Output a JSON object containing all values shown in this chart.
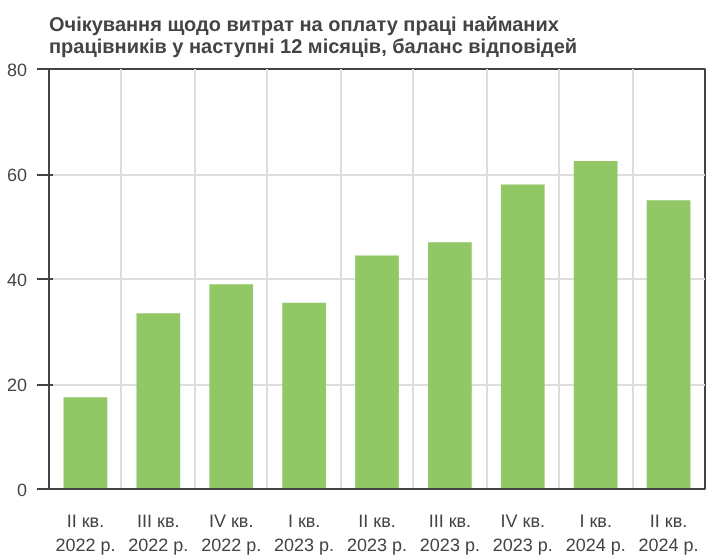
{
  "chart_data": {
    "type": "bar",
    "title": "Очікування щодо витрат на оплату праці найманих\nпрацівників у наступні 12 місяців, баланс відповідей",
    "categories": [
      "II кв.\n2022 р.",
      "III кв.\n2022 р.",
      "IV кв.\n2022 р.",
      "I кв.\n2023 р.",
      "II кв.\n2023 р.",
      "III кв.\n2023 р.",
      "IV кв.\n2023 р.",
      "I кв.\n2024 р.",
      "II кв.\n2024 р."
    ],
    "values": [
      17.5,
      33.5,
      39,
      35.5,
      44.5,
      47,
      58,
      62.5,
      55
    ],
    "color": "#92c765",
    "ylim": [
      0,
      80
    ],
    "yticks": [
      0,
      20,
      40,
      60,
      80
    ],
    "grid": true
  }
}
